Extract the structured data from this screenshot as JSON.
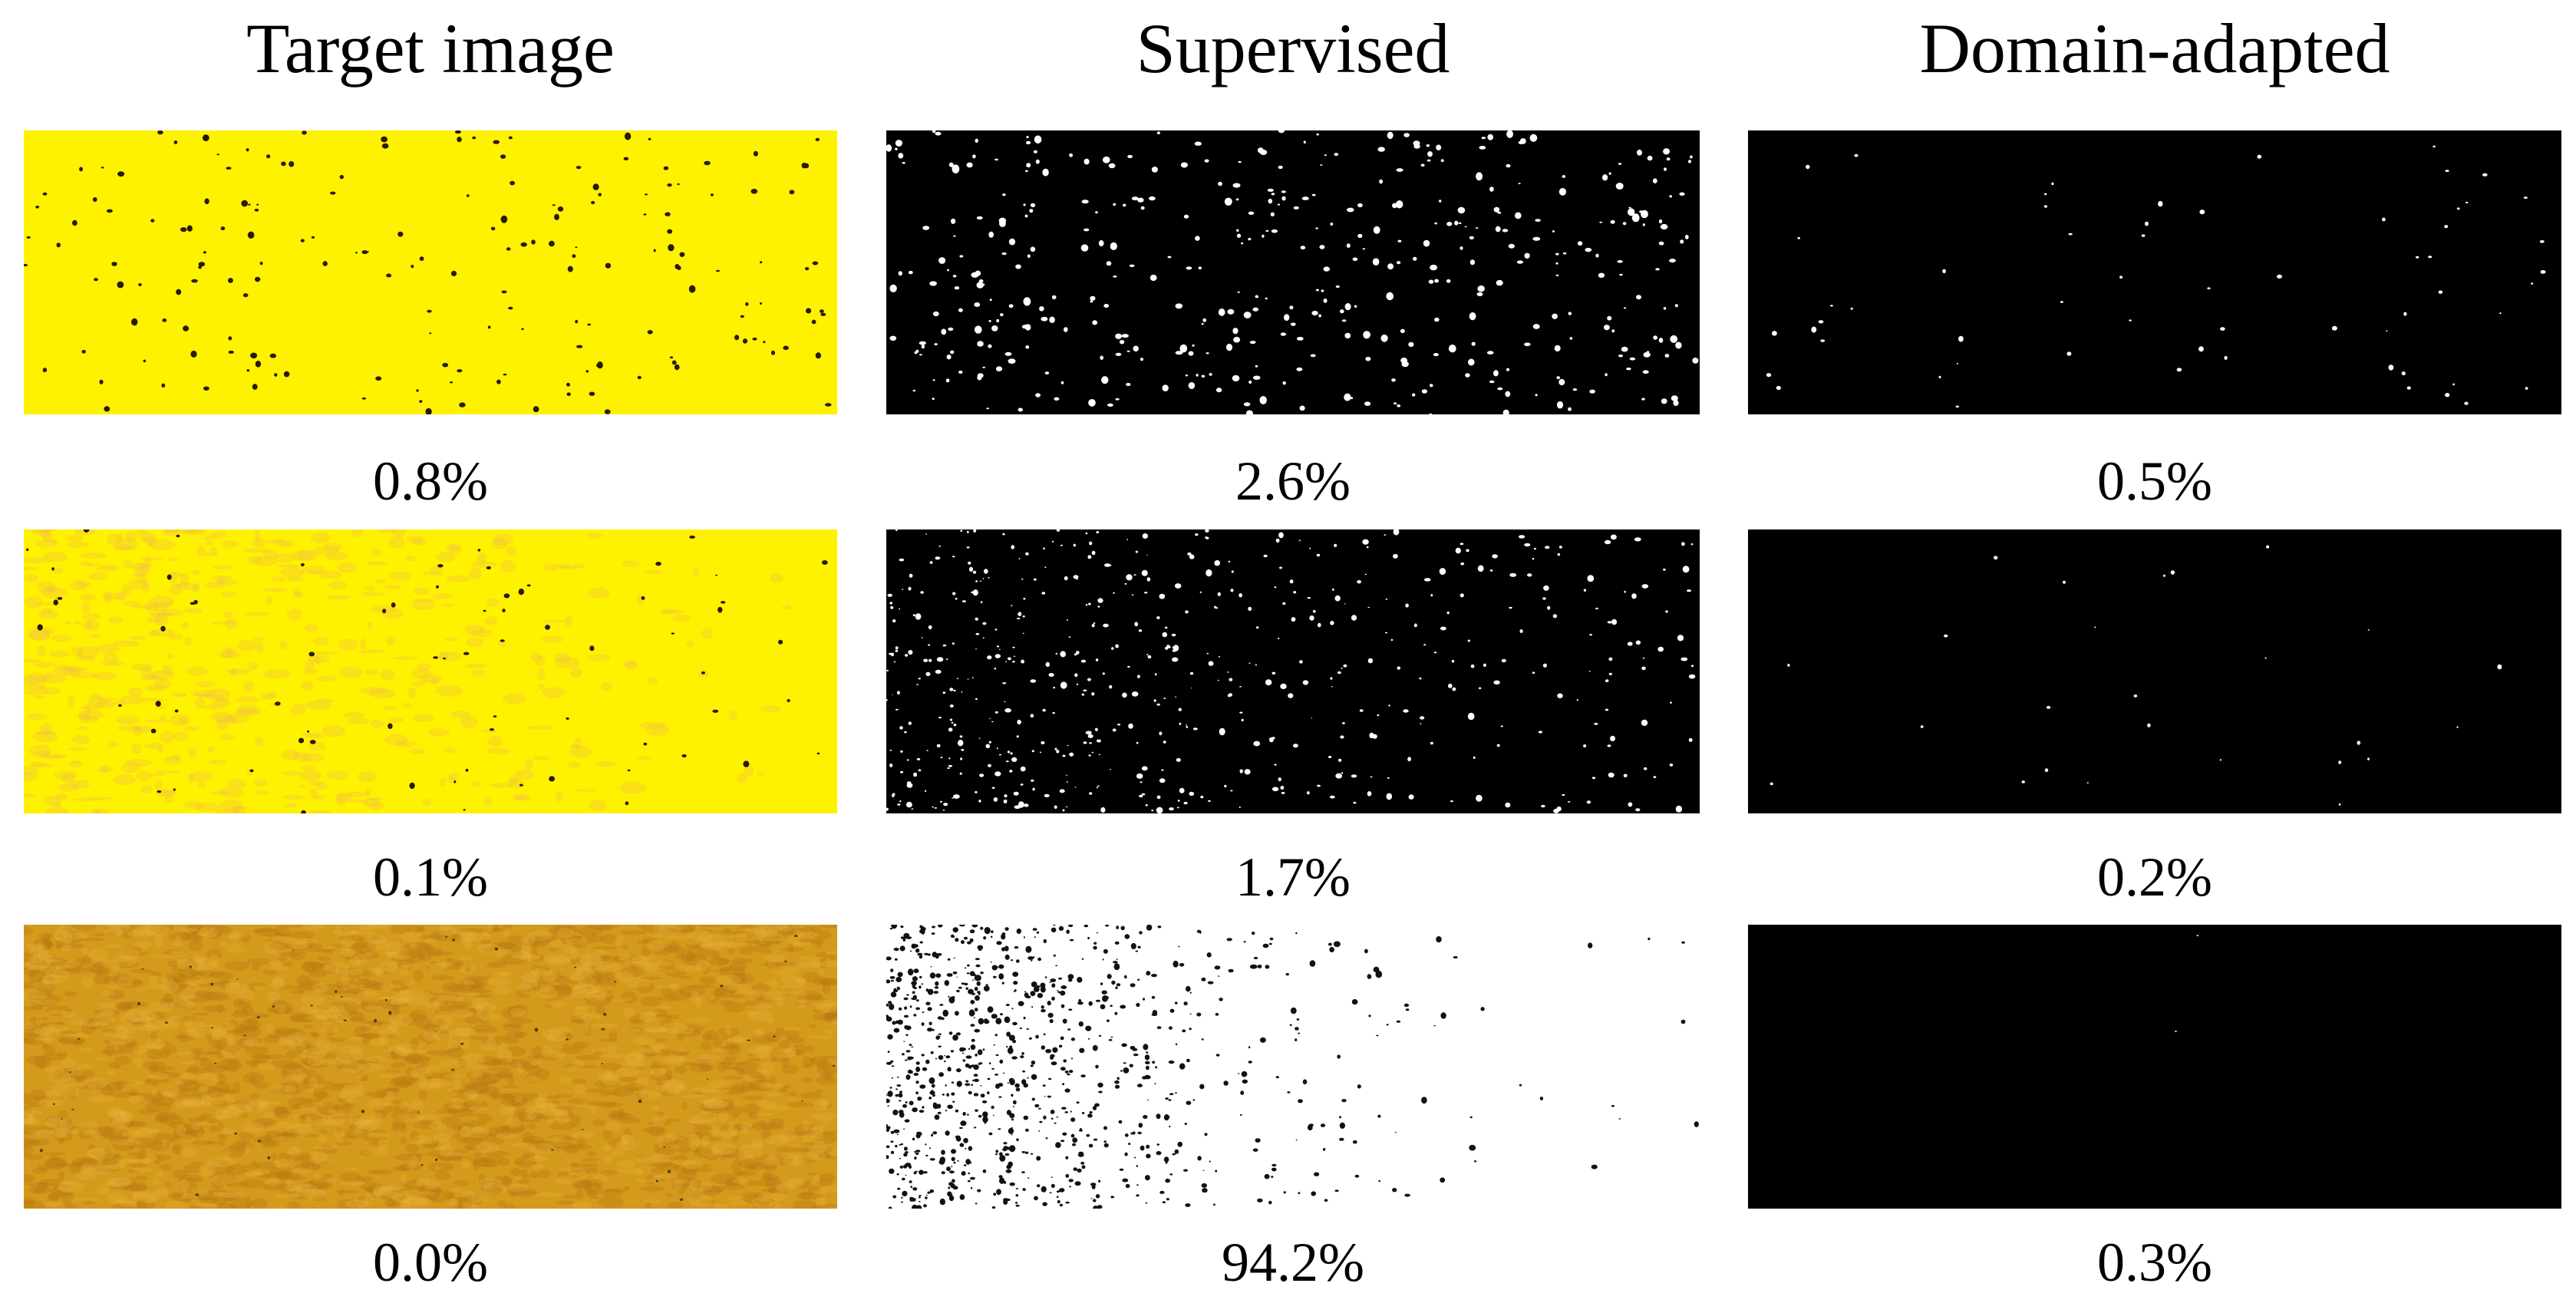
{
  "columns": [
    {
      "title": "Target image"
    },
    {
      "title": "Supervised"
    },
    {
      "title": "Domain-adapted"
    }
  ],
  "rows": [
    {
      "captions": [
        "0.8%",
        "2.6%",
        "0.5%"
      ],
      "spot_counts": [
        180,
        420,
        60
      ]
    },
    {
      "captions": [
        "0.1%",
        "1.7%",
        "0.2%"
      ],
      "spot_counts": [
        70,
        300,
        25
      ]
    },
    {
      "captions": [
        "0.0%",
        "94.2%",
        "0.3%"
      ],
      "spot_counts": [
        60,
        900,
        2
      ]
    }
  ],
  "colors": {
    "bright_yellow": "#fff200",
    "ochre": "#d49a1c",
    "ochre_dark": "#b87812",
    "spot_dark": "#2a1a08",
    "mask_black": "#000000",
    "mask_white": "#ffffff"
  }
}
